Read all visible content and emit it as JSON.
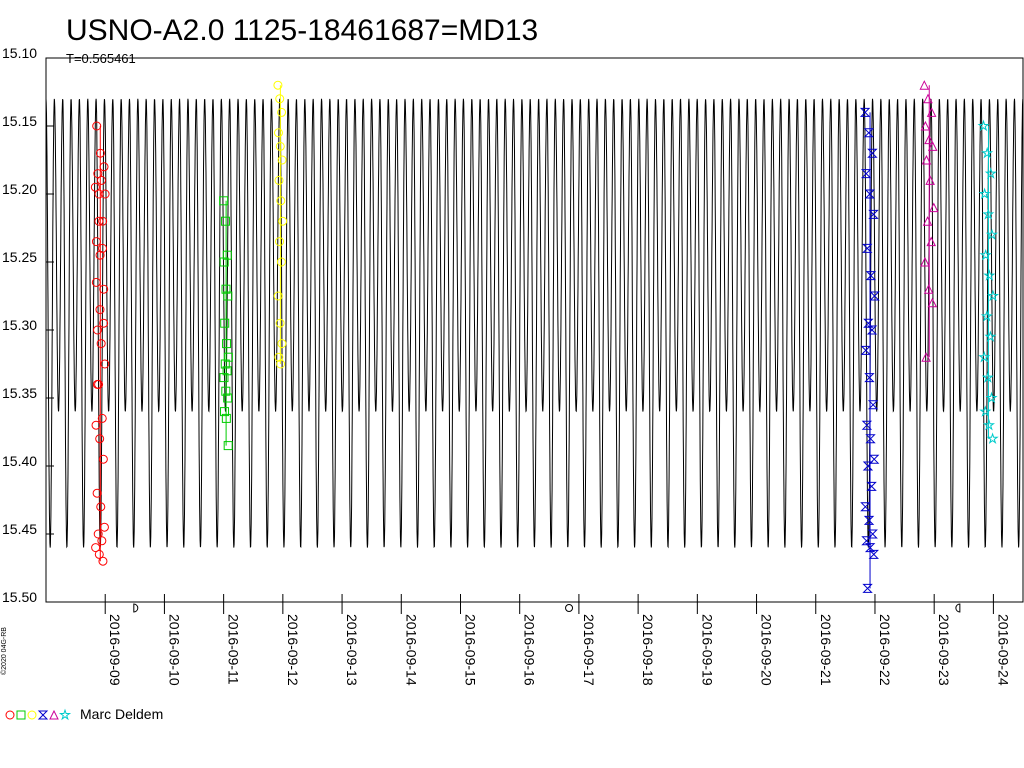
{
  "chart_data": {
    "type": "scatter",
    "title": "USNO-A2.0 1125-18461687=MD13",
    "subtitle": "T=0.565461",
    "y_axis": {
      "reversed": true,
      "ylim": [
        15.1,
        15.5
      ],
      "tick_labels": [
        "15.10",
        "15.15",
        "15.20",
        "15.25",
        "15.30",
        "15.35",
        "15.40",
        "15.45",
        "15.50"
      ]
    },
    "x_axis": {
      "xlim": [
        "2016-09-08 00:00",
        "2016-09-24 12:00"
      ],
      "tick_labels": [
        "2016-09-09",
        "2016-09-10",
        "2016-09-11",
        "2016-09-12",
        "2016-09-13",
        "2016-09-14",
        "2016-09-15",
        "2016-09-16",
        "2016-09-17",
        "2016-09-18",
        "2016-09-19",
        "2016-09-20",
        "2016-09-21",
        "2016-09-22",
        "2016-09-23",
        "2016-09-24"
      ]
    },
    "model_curve": {
      "period_days": 0.282,
      "min_mag": 15.13,
      "max_mag": 15.46,
      "secondary_max_mag": 15.36,
      "color": "#000000"
    },
    "moon_markers": [
      {
        "x": "2016-09-09 12:00",
        "symbol": "D",
        "color": "#000000"
      },
      {
        "x": "2016-09-16 20:00",
        "symbol": "O",
        "color": "#000000"
      },
      {
        "x": "2016-09-23 10:00",
        "symbol": "C",
        "color": "#000000"
      }
    ],
    "legend": {
      "observer": "Marc Deldem",
      "symbols": [
        "circle",
        "square",
        "circle",
        "bowtie",
        "triangle",
        "star"
      ]
    },
    "copyright": "©2020 04G-RB",
    "series": [
      {
        "symbol": "circle",
        "color": "#ff0000",
        "x": "2016-09-08 20:00",
        "x_end": "2016-09-09 00:00",
        "y": [
          15.195,
          15.2,
          15.22,
          15.235,
          15.245,
          15.27,
          15.3,
          15.31,
          15.325,
          15.34,
          15.365,
          15.37,
          15.38,
          15.395,
          15.42,
          15.43,
          15.445,
          15.45,
          15.455,
          15.46,
          15.465,
          15.47,
          15.15,
          15.17,
          15.18,
          15.185,
          15.19,
          15.2,
          15.22,
          15.24,
          15.265,
          15.285,
          15.295,
          15.34
        ]
      },
      {
        "symbol": "square",
        "color": "#00cc00",
        "x": "2016-09-11 00:00",
        "x_end": "2016-09-11 02:00",
        "y": [
          15.205,
          15.22,
          15.245,
          15.25,
          15.27,
          15.275,
          15.295,
          15.31,
          15.32,
          15.325,
          15.33,
          15.335,
          15.345,
          15.35,
          15.36,
          15.365,
          15.385
        ]
      },
      {
        "symbol": "circle",
        "color": "#ffff00",
        "x": "2016-09-11 22:00",
        "x_end": "2016-09-12 00:00",
        "y": [
          15.12,
          15.13,
          15.14,
          15.155,
          15.165,
          15.175,
          15.19,
          15.205,
          15.22,
          15.235,
          15.25,
          15.275,
          15.295,
          15.31,
          15.32,
          15.325
        ]
      },
      {
        "symbol": "bowtie",
        "color": "#0000cc",
        "x": "2016-09-21 20:00",
        "x_end": "2016-09-22 00:00",
        "y": [
          15.14,
          15.155,
          15.17,
          15.185,
          15.2,
          15.215,
          15.24,
          15.26,
          15.275,
          15.295,
          15.3,
          15.315,
          15.335,
          15.355,
          15.37,
          15.38,
          15.395,
          15.4,
          15.415,
          15.43,
          15.44,
          15.45,
          15.455,
          15.46,
          15.465,
          15.49
        ]
      },
      {
        "symbol": "triangle",
        "color": "#cc0099",
        "x": "2016-09-22 20:00",
        "x_end": "2016-09-23 00:00",
        "y": [
          15.12,
          15.13,
          15.14,
          15.15,
          15.16,
          15.165,
          15.175,
          15.19,
          15.21,
          15.22,
          15.235,
          15.25,
          15.27,
          15.28,
          15.32
        ]
      },
      {
        "symbol": "star",
        "color": "#00cccc",
        "x": "2016-09-23 20:00",
        "x_end": "2016-09-24 00:00",
        "y": [
          15.15,
          15.17,
          15.185,
          15.2,
          15.215,
          15.23,
          15.245,
          15.26,
          15.275,
          15.29,
          15.305,
          15.32,
          15.335,
          15.35,
          15.36,
          15.37,
          15.38
        ]
      }
    ]
  }
}
